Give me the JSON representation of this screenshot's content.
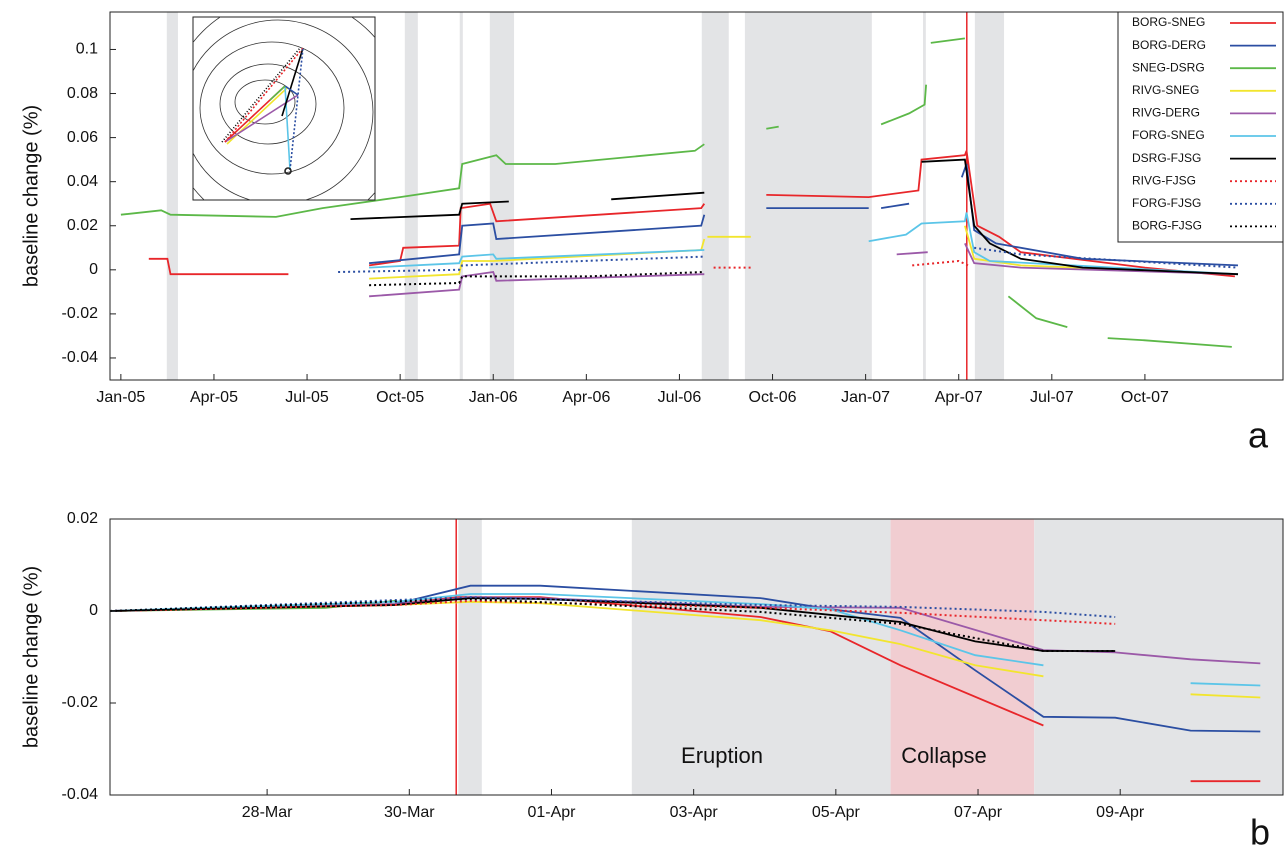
{
  "chart_data": [
    {
      "type": "line",
      "y_label": "baseline change (%)",
      "panel_label": "a",
      "legend": "upper right",
      "xlim": [
        -0.35,
        37.45
      ],
      "ylim": [
        -0.05,
        0.117
      ],
      "xticks": [
        {
          "value": 0,
          "label": "Jan-05"
        },
        {
          "value": 3,
          "label": "Apr-05"
        },
        {
          "value": 6,
          "label": "Jul-05"
        },
        {
          "value": 9,
          "label": "Oct-05"
        },
        {
          "value": 12,
          "label": "Jan-06"
        },
        {
          "value": 15,
          "label": "Apr-06"
        },
        {
          "value": 18,
          "label": "Jul-06"
        },
        {
          "value": 21,
          "label": "Oct-06"
        },
        {
          "value": 24,
          "label": "Jan-07"
        },
        {
          "value": 27,
          "label": "Apr-07"
        },
        {
          "value": 30,
          "label": "Jul-07"
        },
        {
          "value": 33,
          "label": "Oct-07"
        }
      ],
      "yticks": [
        -0.04,
        -0.02,
        0,
        0.02,
        0.04,
        0.06,
        0.08,
        0.1
      ],
      "shaded": [
        {
          "from": 1.48,
          "to": 1.84,
          "color": "#e3e4e6"
        },
        {
          "from": 9.15,
          "to": 9.57,
          "color": "#e3e4e6"
        },
        {
          "from": 10.92,
          "to": 11.02,
          "color": "#e3e4e6"
        },
        {
          "from": 11.89,
          "to": 12.67,
          "color": "#e3e4e6"
        },
        {
          "from": 18.72,
          "to": 19.59,
          "color": "#e3e4e6"
        },
        {
          "from": 20.11,
          "to": 24.2,
          "color": "#e3e4e6"
        },
        {
          "from": 25.85,
          "to": 25.94,
          "color": "#e3e4e6"
        },
        {
          "from": 27.52,
          "to": 28.46,
          "color": "#e3e4e6"
        }
      ],
      "vline": {
        "x": 27.26,
        "color": "#e8262a"
      },
      "series": [
        {
          "name": "BORG-SNEG",
          "color": "#e8262a",
          "style": "solid",
          "x": [
            0.9,
            1.5,
            1.6,
            5.4,
            null,
            8,
            9,
            9.1,
            10.9,
            10.95,
            11.9,
            12.1,
            18.7,
            18.8,
            null,
            20.8,
            24.1,
            25.7,
            25.8,
            27.2,
            27.25,
            27.6,
            28.3,
            29,
            33,
            35.9
          ],
          "values": [
            0.005,
            0.005,
            -0.002,
            -0.002,
            null,
            0.002,
            0.004,
            0.01,
            0.011,
            0.028,
            0.03,
            0.022,
            0.028,
            0.03,
            null,
            0.034,
            0.033,
            0.036,
            0.05,
            0.052,
            0.054,
            0.02,
            0.015,
            0.008,
            0.001,
            -0.003
          ]
        },
        {
          "name": "BORG-DERG",
          "color": "#2b4ea2",
          "style": "solid",
          "x": [
            8,
            10.9,
            11,
            12,
            12.1,
            18.7,
            18.8,
            null,
            20.8,
            24.1,
            null,
            24.5,
            25.4,
            null,
            27.1,
            27.25,
            27.5,
            28.2,
            31,
            36
          ],
          "values": [
            0.003,
            0.007,
            0.02,
            0.021,
            0.014,
            0.02,
            0.025,
            null,
            0.028,
            0.028,
            null,
            0.028,
            0.03,
            null,
            0.042,
            0.048,
            0.018,
            0.012,
            0.005,
            0.002
          ]
        },
        {
          "name": "SNEG-DSRG",
          "color": "#5cb848",
          "style": "solid",
          "x": [
            0,
            1.3,
            1.6,
            5,
            6.5,
            9,
            10.9,
            11,
            12.1,
            12.4,
            14,
            18.5,
            18.8,
            null,
            20.8,
            21.2,
            null,
            24.5,
            25.4,
            25.9,
            25.95,
            null,
            26.1,
            27.2,
            null,
            28.6,
            29.5,
            30.5,
            null,
            31.8,
            33,
            35.8
          ],
          "values": [
            0.025,
            0.027,
            0.025,
            0.024,
            0.028,
            0.033,
            0.037,
            0.048,
            0.052,
            0.048,
            0.048,
            0.054,
            0.057,
            null,
            0.064,
            0.065,
            null,
            0.066,
            0.071,
            0.075,
            0.084,
            null,
            0.103,
            0.105,
            null,
            -0.012,
            -0.022,
            -0.026,
            null,
            -0.031,
            -0.032,
            -0.035
          ]
        },
        {
          "name": "RIVG-SNEG",
          "color": "#f2e52e",
          "style": "solid",
          "x": [
            8,
            10.9,
            11,
            12,
            18.7,
            18.8,
            null,
            18.9,
            20.3,
            null,
            27.2,
            27.5,
            29,
            36
          ],
          "values": [
            -0.004,
            -0.002,
            0.004,
            0.004,
            0.009,
            0.014,
            null,
            0.015,
            0.015,
            null,
            0.02,
            0.005,
            0.002,
            -0.002
          ]
        },
        {
          "name": "RIVG-DERG",
          "color": "#9b59a8",
          "style": "solid",
          "x": [
            8,
            10.9,
            11,
            12,
            12.1,
            18.8,
            null,
            25,
            26,
            null,
            27.2,
            27.5,
            29,
            36
          ],
          "values": [
            -0.012,
            -0.009,
            -0.003,
            -0.001,
            -0.005,
            -0.002,
            null,
            0.007,
            0.008,
            null,
            0.012,
            0.003,
            0.001,
            -0.002
          ]
        },
        {
          "name": "FORG-SNEG",
          "color": "#5bc5e8",
          "style": "solid",
          "x": [
            8,
            10.9,
            11,
            12,
            12.1,
            18.8,
            null,
            24.1,
            25.3,
            25.8,
            27.2,
            27.25,
            27.5,
            28,
            36
          ],
          "values": [
            0.001,
            0.003,
            0.006,
            0.007,
            0.005,
            0.009,
            null,
            0.013,
            0.016,
            0.021,
            0.022,
            0.026,
            0.008,
            0.004,
            -0.002
          ]
        },
        {
          "name": "DSRG-FJSG",
          "color": "#000000",
          "style": "solid",
          "x": [
            7.4,
            10.9,
            11,
            12.5,
            null,
            15.8,
            18.8,
            null,
            25.8,
            27.2,
            27.5,
            28,
            29,
            31,
            36
          ],
          "values": [
            0.023,
            0.025,
            0.03,
            0.031,
            null,
            0.032,
            0.035,
            null,
            0.049,
            0.05,
            0.02,
            0.012,
            0.005,
            0.001,
            -0.002
          ]
        },
        {
          "name": "RIVG-FJSG",
          "color": "#e8262a",
          "style": "dotted",
          "x": [
            19.1,
            20.3,
            null,
            25.5,
            27,
            27.3
          ],
          "values": [
            0.001,
            0.001,
            null,
            0.002,
            0.004,
            0.002
          ]
        },
        {
          "name": "FORG-FJSG",
          "color": "#2b4ea2",
          "style": "dotted",
          "x": [
            7,
            10.9,
            11,
            18.8,
            null,
            27.5,
            29,
            36
          ],
          "values": [
            -0.001,
            0,
            0.002,
            0.006,
            null,
            0.01,
            0.007,
            0.001
          ]
        },
        {
          "name": "BORG-FJSG",
          "color": "#000000",
          "style": "dotted",
          "x": [
            8,
            10.9,
            11,
            15,
            18.8
          ],
          "values": [
            -0.007,
            -0.006,
            -0.003,
            -0.003,
            -0.001
          ]
        }
      ]
    },
    {
      "type": "line",
      "y_label": "baseline change (%)",
      "panel_label": "b",
      "xlim": [
        25.79,
        42.29
      ],
      "ylim": [
        -0.04,
        0.02
      ],
      "xticks": [
        {
          "value": 28,
          "label": "28-Mar"
        },
        {
          "value": 30,
          "label": "30-Mar"
        },
        {
          "value": 32,
          "label": "01-Apr"
        },
        {
          "value": 34,
          "label": "03-Apr"
        },
        {
          "value": 36,
          "label": "05-Apr"
        },
        {
          "value": 38,
          "label": "07-Apr"
        },
        {
          "value": 40,
          "label": "09-Apr"
        }
      ],
      "yticks": [
        -0.04,
        -0.02,
        0,
        0.02
      ],
      "shaded": [
        {
          "from": 30.69,
          "to": 31.02,
          "color": "#e3e4e6"
        },
        {
          "from": 33.13,
          "to": 36.77,
          "color": "#e3e4e6"
        },
        {
          "from": 36.77,
          "to": 38.79,
          "color": "#f1cdd1"
        },
        {
          "from": 38.79,
          "to": 42.29,
          "color": "#e3e4e6"
        }
      ],
      "vline": {
        "x": 30.66,
        "color": "#e8262a"
      },
      "annotations": [
        "Eruption",
        "Collapse"
      ],
      "series": [
        {
          "color": "#e8262a",
          "style": "solid",
          "x": [
            25.79,
            29.8,
            30.69,
            31.84,
            34.94,
            35.92,
            36.91,
            38.92,
            null,
            40.99,
            41.97
          ],
          "values": [
            0,
            0.0015,
            0.003,
            0.003,
            -0.0013,
            -0.0044,
            -0.0118,
            -0.0249,
            null,
            -0.037,
            -0.037
          ]
        },
        {
          "color": "#2b4ea2",
          "style": "solid",
          "x": [
            25.79,
            29.8,
            30.86,
            31.84,
            34.94,
            35.92,
            36.91,
            37.96,
            38.92,
            39.93,
            40.99,
            41.97
          ],
          "values": [
            0,
            0.0015,
            0.0055,
            0.0055,
            0.0028,
            0.0004,
            -0.0015,
            -0.0129,
            -0.023,
            -0.0232,
            -0.026,
            -0.0262
          ]
        },
        {
          "color": "#5cb848",
          "style": "solid",
          "x": [
            25.79,
            28.82,
            29.8
          ],
          "values": [
            0,
            0.0007,
            0.0022
          ]
        },
        {
          "color": "#f2e52e",
          "style": "solid",
          "x": [
            25.79,
            29.8,
            30.86,
            31.84,
            34.94,
            35.92,
            36.91,
            37.96,
            38.92,
            null,
            40.99,
            41.97
          ],
          "values": [
            0,
            0.0013,
            0.002,
            0.0017,
            -0.002,
            -0.0042,
            -0.0072,
            -0.0118,
            -0.0142,
            null,
            -0.0181,
            -0.0188
          ]
        },
        {
          "color": "#9b59a8",
          "style": "solid",
          "x": [
            25.79,
            29.8,
            30.86,
            31.84,
            34.94,
            36.91,
            38.92,
            39.93,
            40.99,
            41.97
          ],
          "values": [
            0,
            0.0015,
            0.003,
            0.0028,
            0.0009,
            0.0007,
            -0.0085,
            -0.009,
            -0.0105,
            -0.0114
          ]
        },
        {
          "color": "#5bc5e8",
          "style": "solid",
          "x": [
            25.79,
            29.8,
            30.86,
            31.84,
            34.94,
            35.92,
            36.91,
            37.96,
            38.92,
            null,
            40.99,
            41.97
          ],
          "values": [
            0,
            0.002,
            0.0037,
            0.0037,
            0.0015,
            0.0004,
            -0.0042,
            -0.0096,
            -0.0118,
            null,
            -0.0157,
            -0.0162
          ]
        },
        {
          "color": "#000000",
          "style": "solid",
          "x": [
            25.79,
            29.8,
            30.86,
            31.84,
            34.94,
            36.91,
            37.96,
            38.92,
            39.93
          ],
          "values": [
            0,
            0.0013,
            0.0028,
            0.0026,
            0.0007,
            -0.0024,
            -0.0066,
            -0.0087,
            -0.0087
          ]
        },
        {
          "color": "#e8262a",
          "style": "dotted",
          "x": [
            25.79,
            29.8,
            30.86,
            34.94,
            36.91,
            38.92,
            39.93
          ],
          "values": [
            0,
            0.0013,
            0.0022,
            0.0007,
            -0.0004,
            -0.002,
            -0.0028
          ]
        },
        {
          "color": "#2b4ea2",
          "style": "dotted",
          "x": [
            25.79,
            30.86,
            34.94,
            36.91,
            38.92,
            39.93
          ],
          "values": [
            0,
            0.003,
            0.0013,
            0.0009,
            -0.0002,
            -0.0013
          ]
        },
        {
          "color": "#000000",
          "style": "dotted",
          "x": [
            25.79,
            30.86,
            34.94,
            36.91,
            38.92,
            39.93
          ],
          "values": [
            0,
            0.0026,
            -0.0002,
            -0.0028,
            -0.0087,
            -0.0087
          ]
        }
      ]
    }
  ]
}
